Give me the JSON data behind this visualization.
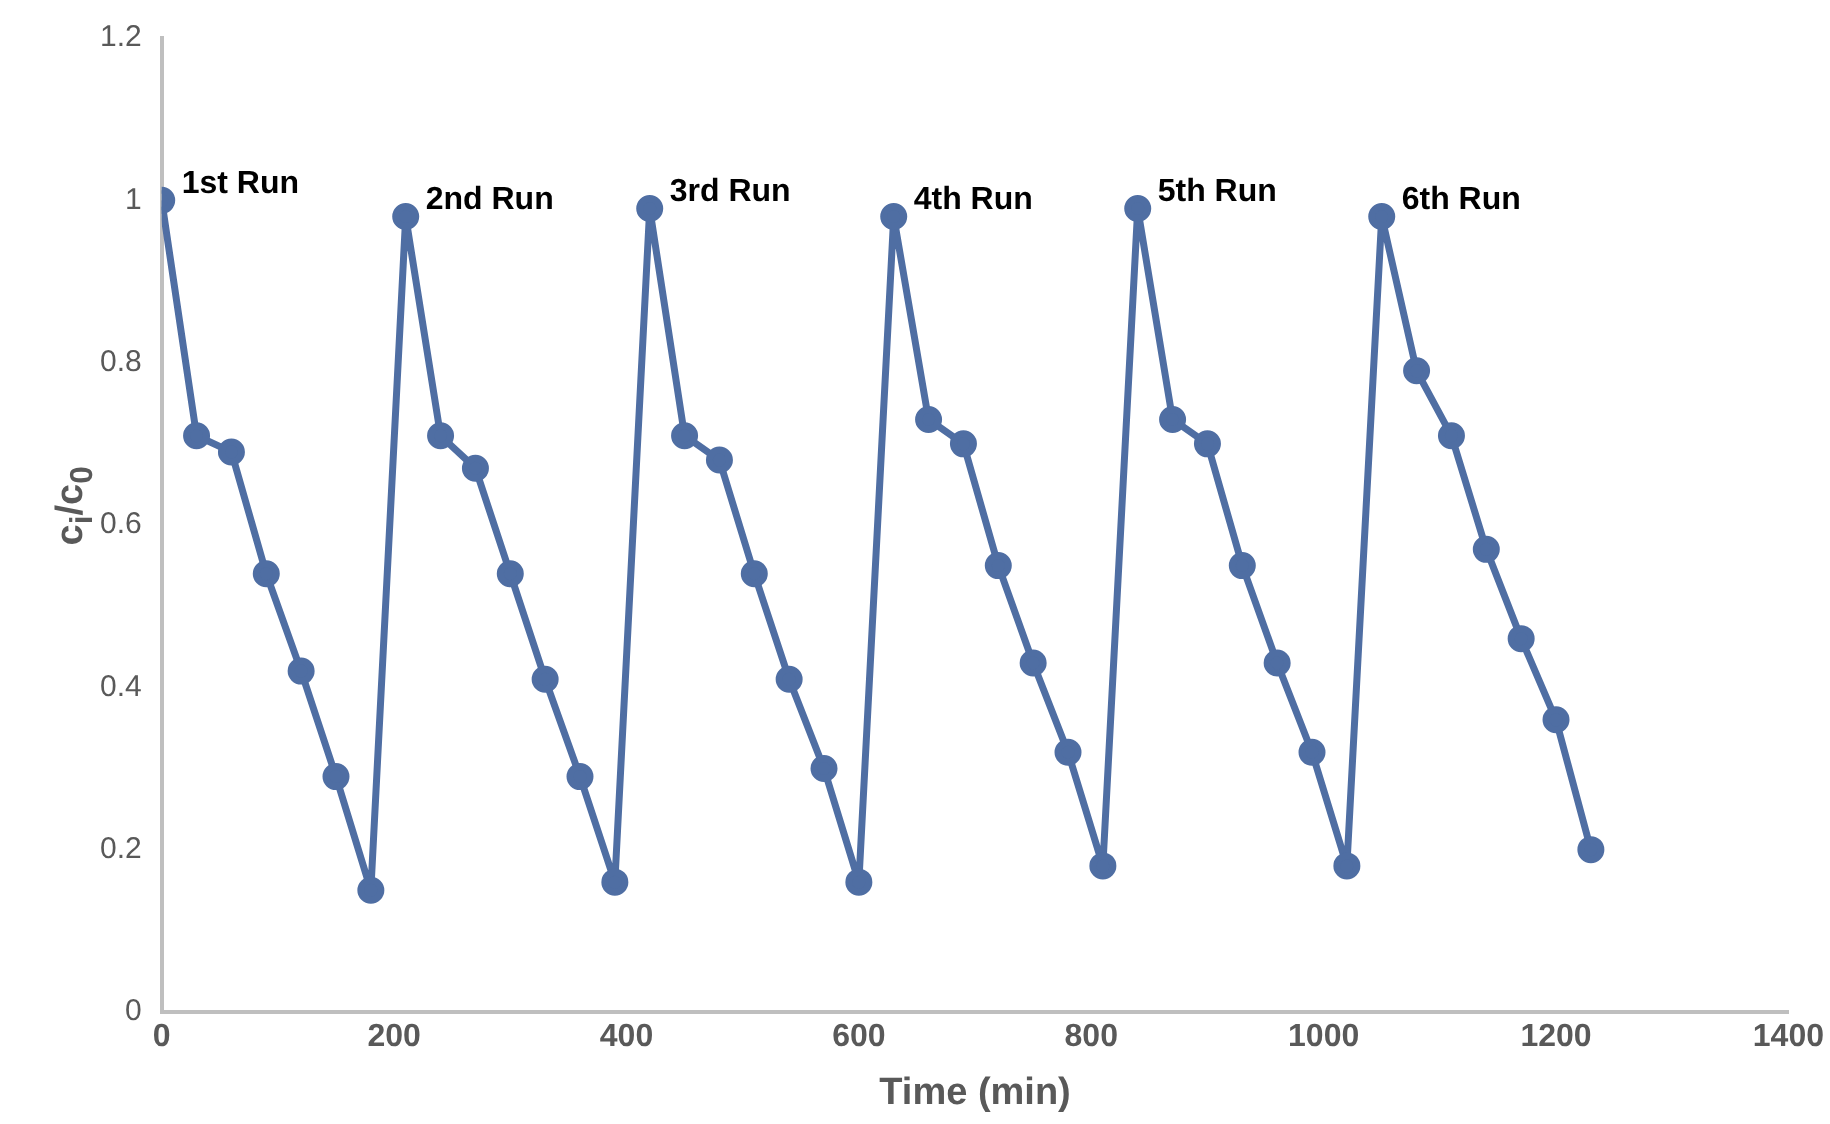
{
  "chart_data": {
    "type": "line",
    "xlabel": "Time (min)",
    "ylabel": "c$_{i}$/c$_{0}$",
    "x": [
      0,
      30,
      60,
      90,
      120,
      150,
      180,
      210,
      240,
      270,
      300,
      330,
      360,
      390,
      420,
      450,
      480,
      510,
      540,
      570,
      600,
      630,
      660,
      690,
      720,
      750,
      780,
      810,
      840,
      870,
      900,
      930,
      960,
      990,
      1020,
      1050,
      1080,
      1110,
      1140,
      1170,
      1200,
      1230
    ],
    "series": [
      {
        "color": "#4f6ea3",
        "values": [
          1.0,
          0.71,
          0.69,
          0.54,
          0.42,
          0.29,
          0.15,
          0.98,
          0.71,
          0.67,
          0.54,
          0.41,
          0.29,
          0.16,
          0.99,
          0.71,
          0.68,
          0.54,
          0.41,
          0.3,
          0.16,
          0.98,
          0.73,
          0.7,
          0.55,
          0.43,
          0.32,
          0.18,
          0.99,
          0.73,
          0.7,
          0.55,
          0.43,
          0.32,
          0.18,
          0.98,
          0.79,
          0.71,
          0.57,
          0.46,
          0.36,
          0.2
        ]
      }
    ],
    "xlim": [
      0,
      1400
    ],
    "xticks": [
      0,
      200,
      400,
      600,
      800,
      1000,
      1200,
      1400
    ],
    "ylim": [
      0,
      1.2
    ],
    "yticks": [
      0,
      0.2,
      0.4,
      0.6,
      0.8,
      1,
      1.2
    ],
    "grid": false,
    "legend": false,
    "marker": "circle",
    "line_style": "solid",
    "annotations": [
      {
        "text": "1st Run",
        "x": 0,
        "y": 1.0
      },
      {
        "text": "2nd Run",
        "x": 210,
        "y": 0.98
      },
      {
        "text": "3rd Run",
        "x": 420,
        "y": 0.99
      },
      {
        "text": "4th Run",
        "x": 630,
        "y": 0.98
      },
      {
        "text": "5th Run",
        "x": 840,
        "y": 0.99
      },
      {
        "text": "6th Run",
        "x": 1050,
        "y": 0.98
      }
    ]
  }
}
